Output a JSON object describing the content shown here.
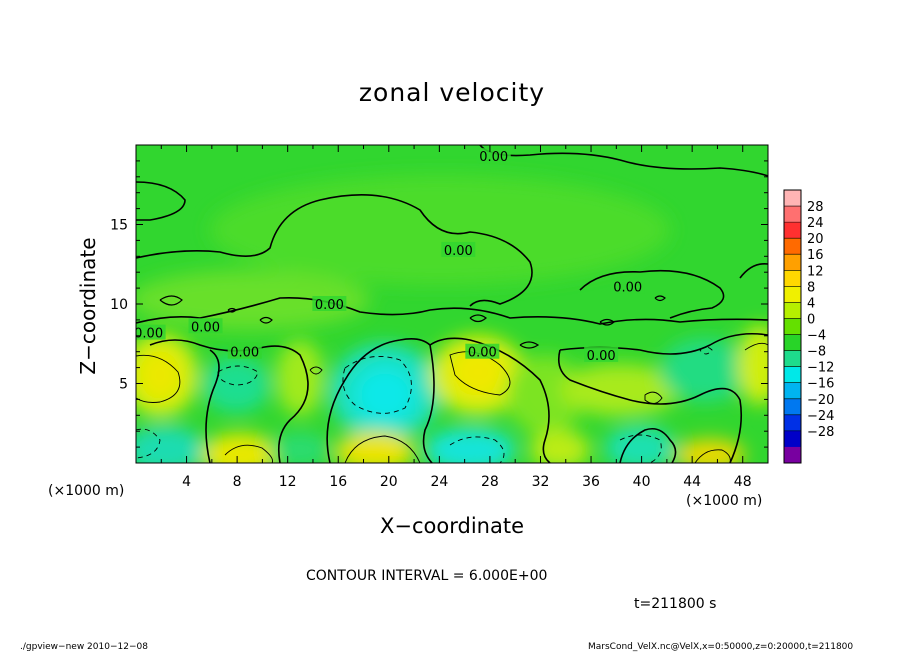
{
  "chart_data": {
    "type": "heatmap",
    "title": "zonal velocity",
    "xlabel": "X−coordinate",
    "ylabel": "Z−coordinate",
    "x_unit_left": "(×1000 m)",
    "x_unit_right": "(×1000 m)",
    "xlim": [
      0,
      50
    ],
    "ylim": [
      0,
      20
    ],
    "x_ticks": [
      "4",
      "8",
      "12",
      "16",
      "20",
      "24",
      "28",
      "32",
      "36",
      "40",
      "44",
      "48"
    ],
    "x_tick_values": [
      4,
      8,
      12,
      16,
      20,
      24,
      28,
      32,
      36,
      40,
      44,
      48
    ],
    "y_ticks": [
      "5",
      "10",
      "15"
    ],
    "y_tick_values": [
      5,
      10,
      15
    ],
    "contour_interval_text": "CONTOUR INTERVAL = 6.000E+00",
    "time_text": "t=211800 s",
    "contour_labels": [
      {
        "text": "0.00",
        "x": 28.3,
        "y": 19.3
      },
      {
        "text": "0.00",
        "x": 25.5,
        "y": 13.4
      },
      {
        "text": "0.00",
        "x": 38.9,
        "y": 11.1
      },
      {
        "text": "0.00",
        "x": 15.3,
        "y": 10.0
      },
      {
        "text": "0.00",
        "x": 5.5,
        "y": 8.6
      },
      {
        "text": "0.00",
        "x": 8.6,
        "y": 7.0
      },
      {
        "text": "0.00",
        "x": 27.4,
        "y": 7.0
      },
      {
        "text": "0.00",
        "x": 36.8,
        "y": 6.8
      },
      {
        "text": "0.00",
        "x": 1.0,
        "y": 8.2
      }
    ],
    "colorbar": {
      "labels": [
        "28",
        "24",
        "20",
        "16",
        "12",
        "8",
        "4",
        "0",
        "−4",
        "−8",
        "−12",
        "−16",
        "−20",
        "−24",
        "−28"
      ],
      "colors": [
        "#ffb4b4",
        "#ff7070",
        "#ff3030",
        "#ff6a00",
        "#ffa000",
        "#ffd800",
        "#f0f000",
        "#b6f000",
        "#64e000",
        "#28d428",
        "#1edc8c",
        "#00e8e8",
        "#00b4f0",
        "#0078f0",
        "#0030e6",
        "#0000c8",
        "#7800a0"
      ]
    }
  },
  "footer": {
    "left": "./gpview−new   2010−12−08",
    "right": "MarsCond_VelX.nc@VelX,x=0:50000,z=0:20000,t=211800"
  }
}
